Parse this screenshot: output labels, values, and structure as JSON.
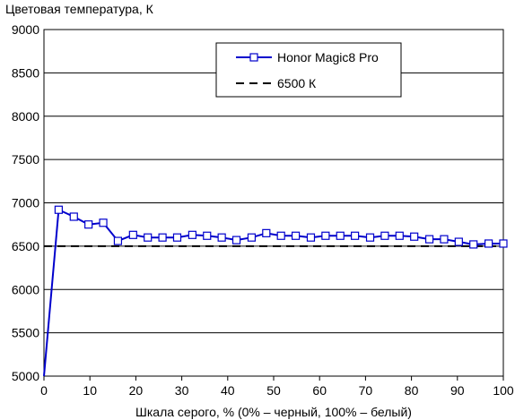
{
  "chart_data": {
    "type": "line",
    "title": "",
    "ylabel": "Цветовая температура, К",
    "xlabel": "Шкала серого, % (0% – черный, 100% – белый)",
    "xlim": [
      0,
      100
    ],
    "ylim": [
      5000,
      9000
    ],
    "xticks": [
      0,
      10,
      20,
      30,
      40,
      50,
      60,
      70,
      80,
      90,
      100
    ],
    "yticks": [
      5000,
      5500,
      6000,
      6500,
      7000,
      7500,
      8000,
      8500,
      9000
    ],
    "x_tick_labels": [
      "0",
      "10",
      "20",
      "30",
      "40",
      "50",
      "60",
      "70",
      "80",
      "90",
      "100"
    ],
    "y_tick_labels": [
      "5000",
      "5500",
      "6000",
      "6500",
      "7000",
      "7500",
      "8000",
      "8500",
      "9000"
    ],
    "grid": "horizontal",
    "legend_position": "top-right",
    "series": [
      {
        "name": "Honor Magic8 Pro",
        "color": "#0000cc",
        "marker": "square",
        "x": [
          0,
          3.2,
          6.5,
          9.7,
          12.9,
          16.1,
          19.4,
          22.6,
          25.8,
          29.0,
          32.3,
          35.5,
          38.7,
          41.9,
          45.2,
          48.4,
          51.6,
          54.8,
          58.1,
          61.3,
          64.5,
          67.7,
          71.0,
          74.2,
          77.4,
          80.6,
          83.9,
          87.1,
          90.3,
          93.5,
          96.8,
          100
        ],
        "y": [
          4980,
          6920,
          6840,
          6750,
          6770,
          6560,
          6630,
          6600,
          6600,
          6600,
          6630,
          6620,
          6600,
          6570,
          6600,
          6650,
          6620,
          6620,
          6600,
          6620,
          6620,
          6620,
          6600,
          6620,
          6620,
          6610,
          6580,
          6580,
          6550,
          6520,
          6530,
          6530
        ]
      },
      {
        "name": "6500 К",
        "color": "#000000",
        "style": "dashed",
        "x": [
          0,
          100
        ],
        "y": [
          6500,
          6500
        ]
      }
    ]
  }
}
